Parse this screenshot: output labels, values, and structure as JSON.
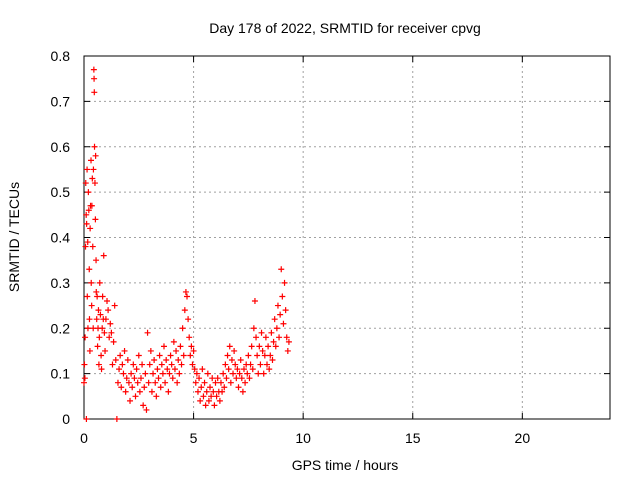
{
  "chart_data": {
    "type": "scatter",
    "title": "Day 178 of 2022, SRMTID for receiver cpvg",
    "xlabel": "GPS time / hours",
    "ylabel": "SRMTID / TECUs",
    "xlim": [
      0,
      24
    ],
    "ylim": [
      0,
      0.8
    ],
    "xticks": [
      0,
      5,
      10,
      15,
      20
    ],
    "yticks": [
      0,
      0.1,
      0.2,
      0.3,
      0.4,
      0.5,
      0.6,
      0.7,
      0.8
    ],
    "grid": true,
    "marker": "+",
    "series": [
      {
        "name": "SRMTID",
        "color": "#ff0000",
        "points": [
          [
            0.0,
            0.08
          ],
          [
            0.02,
            0.12
          ],
          [
            0.04,
            0.09
          ],
          [
            0.05,
            0.18
          ],
          [
            0.07,
            0.38
          ],
          [
            0.08,
            0.52
          ],
          [
            0.1,
            0.45
          ],
          [
            0.11,
            0.0
          ],
          [
            0.12,
            0.43
          ],
          [
            0.14,
            0.55
          ],
          [
            0.15,
            0.27
          ],
          [
            0.17,
            0.39
          ],
          [
            0.18,
            0.2
          ],
          [
            0.2,
            0.5
          ],
          [
            0.22,
            0.46
          ],
          [
            0.24,
            0.33
          ],
          [
            0.25,
            0.22
          ],
          [
            0.27,
            0.15
          ],
          [
            0.28,
            0.42
          ],
          [
            0.3,
            0.47
          ],
          [
            0.32,
            0.57
          ],
          [
            0.33,
            0.3
          ],
          [
            0.35,
            0.25
          ],
          [
            0.36,
            0.47
          ],
          [
            0.38,
            0.53
          ],
          [
            0.4,
            0.38
          ],
          [
            0.42,
            0.2
          ],
          [
            0.43,
            0.55
          ],
          [
            0.45,
            0.77
          ],
          [
            0.46,
            0.75
          ],
          [
            0.47,
            0.72
          ],
          [
            0.48,
            0.6
          ],
          [
            0.5,
            0.52
          ],
          [
            0.52,
            0.44
          ],
          [
            0.53,
            0.58
          ],
          [
            0.55,
            0.35
          ],
          [
            0.56,
            0.28
          ],
          [
            0.58,
            0.22
          ],
          [
            0.6,
            0.27
          ],
          [
            0.62,
            0.16
          ],
          [
            0.64,
            0.2
          ],
          [
            0.66,
            0.24
          ],
          [
            0.68,
            0.12
          ],
          [
            0.7,
            0.18
          ],
          [
            0.72,
            0.3
          ],
          [
            0.75,
            0.23
          ],
          [
            0.78,
            0.14
          ],
          [
            0.8,
            0.11
          ],
          [
            0.83,
            0.2
          ],
          [
            0.85,
            0.27
          ],
          [
            0.88,
            0.22
          ],
          [
            0.9,
            0.36
          ],
          [
            0.93,
            0.19
          ],
          [
            0.96,
            0.15
          ],
          [
            1.0,
            0.22
          ],
          [
            1.05,
            0.26
          ],
          [
            1.1,
            0.24
          ],
          [
            1.15,
            0.18
          ],
          [
            1.2,
            0.21
          ],
          [
            1.25,
            0.19
          ],
          [
            1.3,
            0.12
          ],
          [
            1.35,
            0.17
          ],
          [
            1.4,
            0.25
          ],
          [
            1.45,
            0.13
          ],
          [
            1.5,
            0.0
          ],
          [
            1.55,
            0.08
          ],
          [
            1.6,
            0.11
          ],
          [
            1.65,
            0.14
          ],
          [
            1.7,
            0.07
          ],
          [
            1.75,
            0.12
          ],
          [
            1.8,
            0.1
          ],
          [
            1.85,
            0.15
          ],
          [
            1.9,
            0.06
          ],
          [
            1.95,
            0.09
          ],
          [
            2.0,
            0.13
          ],
          [
            2.05,
            0.08
          ],
          [
            2.1,
            0.04
          ],
          [
            2.15,
            0.1
          ],
          [
            2.2,
            0.07
          ],
          [
            2.25,
            0.12
          ],
          [
            2.3,
            0.09
          ],
          [
            2.35,
            0.05
          ],
          [
            2.4,
            0.11
          ],
          [
            2.45,
            0.08
          ],
          [
            2.5,
            0.14
          ],
          [
            2.55,
            0.06
          ],
          [
            2.6,
            0.09
          ],
          [
            2.65,
            0.12
          ],
          [
            2.7,
            0.03
          ],
          [
            2.75,
            0.07
          ],
          [
            2.8,
            0.1
          ],
          [
            2.85,
            0.02
          ],
          [
            2.9,
            0.19
          ],
          [
            2.95,
            0.08
          ],
          [
            3.0,
            0.12
          ],
          [
            3.05,
            0.15
          ],
          [
            3.1,
            0.06
          ],
          [
            3.15,
            0.1
          ],
          [
            3.2,
            0.13
          ],
          [
            3.25,
            0.08
          ],
          [
            3.3,
            0.05
          ],
          [
            3.35,
            0.11
          ],
          [
            3.4,
            0.09
          ],
          [
            3.45,
            0.14
          ],
          [
            3.5,
            0.07
          ],
          [
            3.55,
            0.12
          ],
          [
            3.6,
            0.1
          ],
          [
            3.65,
            0.16
          ],
          [
            3.7,
            0.08
          ],
          [
            3.75,
            0.13
          ],
          [
            3.8,
            0.11
          ],
          [
            3.85,
            0.06
          ],
          [
            3.9,
            0.1
          ],
          [
            3.95,
            0.14
          ],
          [
            4.0,
            0.12
          ],
          [
            4.05,
            0.09
          ],
          [
            4.1,
            0.17
          ],
          [
            4.15,
            0.11
          ],
          [
            4.2,
            0.15
          ],
          [
            4.25,
            0.08
          ],
          [
            4.3,
            0.13
          ],
          [
            4.35,
            0.1
          ],
          [
            4.4,
            0.16
          ],
          [
            4.45,
            0.12
          ],
          [
            4.5,
            0.2
          ],
          [
            4.55,
            0.14
          ],
          [
            4.6,
            0.24
          ],
          [
            4.65,
            0.28
          ],
          [
            4.7,
            0.27
          ],
          [
            4.75,
            0.22
          ],
          [
            4.8,
            0.18
          ],
          [
            4.85,
            0.14
          ],
          [
            4.9,
            0.16
          ],
          [
            4.95,
            0.12
          ],
          [
            5.0,
            0.15
          ],
          [
            5.05,
            0.11
          ],
          [
            5.1,
            0.08
          ],
          [
            5.15,
            0.1
          ],
          [
            5.2,
            0.06
          ],
          [
            5.25,
            0.09
          ],
          [
            5.3,
            0.04
          ],
          [
            5.35,
            0.07
          ],
          [
            5.4,
            0.11
          ],
          [
            5.45,
            0.05
          ],
          [
            5.5,
            0.08
          ],
          [
            5.55,
            0.03
          ],
          [
            5.6,
            0.06
          ],
          [
            5.65,
            0.1
          ],
          [
            5.7,
            0.04
          ],
          [
            5.75,
            0.07
          ],
          [
            5.8,
            0.05
          ],
          [
            5.85,
            0.09
          ],
          [
            5.9,
            0.06
          ],
          [
            5.95,
            0.03
          ],
          [
            6.0,
            0.08
          ],
          [
            6.05,
            0.05
          ],
          [
            6.1,
            0.09
          ],
          [
            6.15,
            0.06
          ],
          [
            6.2,
            0.04
          ],
          [
            6.25,
            0.08
          ],
          [
            6.3,
            0.06
          ],
          [
            6.35,
            0.1
          ],
          [
            6.4,
            0.07
          ],
          [
            6.45,
            0.12
          ],
          [
            6.5,
            0.09
          ],
          [
            6.55,
            0.14
          ],
          [
            6.6,
            0.11
          ],
          [
            6.65,
            0.16
          ],
          [
            6.7,
            0.08
          ],
          [
            6.75,
            0.13
          ],
          [
            6.8,
            0.1
          ],
          [
            6.85,
            0.15
          ],
          [
            6.9,
            0.12
          ],
          [
            6.95,
            0.09
          ],
          [
            7.0,
            0.11
          ],
          [
            7.05,
            0.07
          ],
          [
            7.1,
            0.1
          ],
          [
            7.15,
            0.13
          ],
          [
            7.2,
            0.09
          ],
          [
            7.25,
            0.06
          ],
          [
            7.3,
            0.11
          ],
          [
            7.35,
            0.08
          ],
          [
            7.4,
            0.12
          ],
          [
            7.45,
            0.1
          ],
          [
            7.5,
            0.14
          ],
          [
            7.55,
            0.09
          ],
          [
            7.6,
            0.12
          ],
          [
            7.65,
            0.16
          ],
          [
            7.7,
            0.11
          ],
          [
            7.75,
            0.2
          ],
          [
            7.8,
            0.26
          ],
          [
            7.85,
            0.18
          ],
          [
            7.9,
            0.14
          ],
          [
            7.95,
            0.1
          ],
          [
            8.0,
            0.16
          ],
          [
            8.05,
            0.12
          ],
          [
            8.1,
            0.19
          ],
          [
            8.15,
            0.15
          ],
          [
            8.2,
            0.1
          ],
          [
            8.25,
            0.14
          ],
          [
            8.3,
            0.18
          ],
          [
            8.35,
            0.12
          ],
          [
            8.4,
            0.16
          ],
          [
            8.45,
            0.11
          ],
          [
            8.5,
            0.14
          ],
          [
            8.55,
            0.19
          ],
          [
            8.6,
            0.13
          ],
          [
            8.65,
            0.17
          ],
          [
            8.7,
            0.22
          ],
          [
            8.75,
            0.16
          ],
          [
            8.8,
            0.2
          ],
          [
            8.85,
            0.25
          ],
          [
            8.9,
            0.18
          ],
          [
            8.95,
            0.23
          ],
          [
            9.0,
            0.33
          ],
          [
            9.05,
            0.27
          ],
          [
            9.1,
            0.21
          ],
          [
            9.15,
            0.3
          ],
          [
            9.2,
            0.24
          ],
          [
            9.25,
            0.18
          ],
          [
            9.3,
            0.15
          ],
          [
            9.35,
            0.17
          ]
        ]
      }
    ]
  }
}
